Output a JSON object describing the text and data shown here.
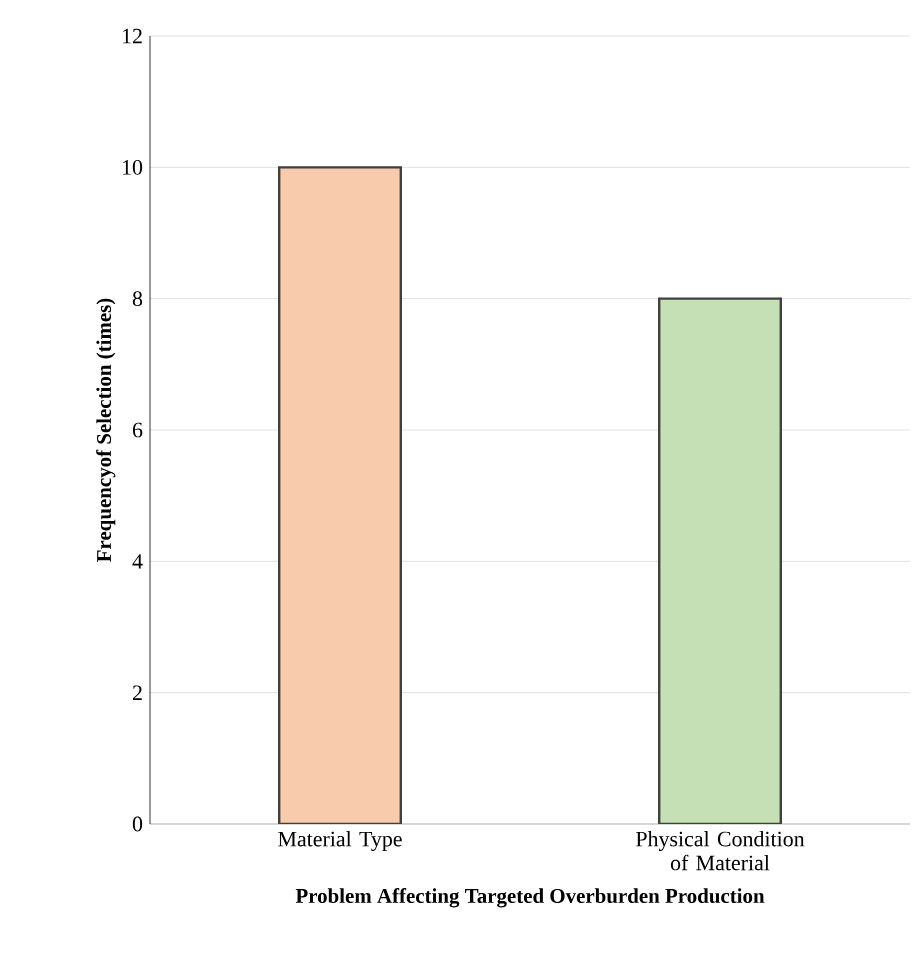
{
  "chart_data": {
    "type": "bar",
    "categories": [
      "Material Type",
      "Physical Condition of Material"
    ],
    "values": [
      10,
      8
    ],
    "colors": [
      "#f8cbad",
      "#c5e0b4"
    ],
    "xlabel": "Problem Affecting Targeted Overburden Production",
    "ylabel": "Frequencyof Selection (times)",
    "ylim": [
      0,
      12
    ],
    "yticks": [
      0,
      2,
      4,
      6,
      8,
      10,
      12
    ],
    "grid": "y"
  }
}
